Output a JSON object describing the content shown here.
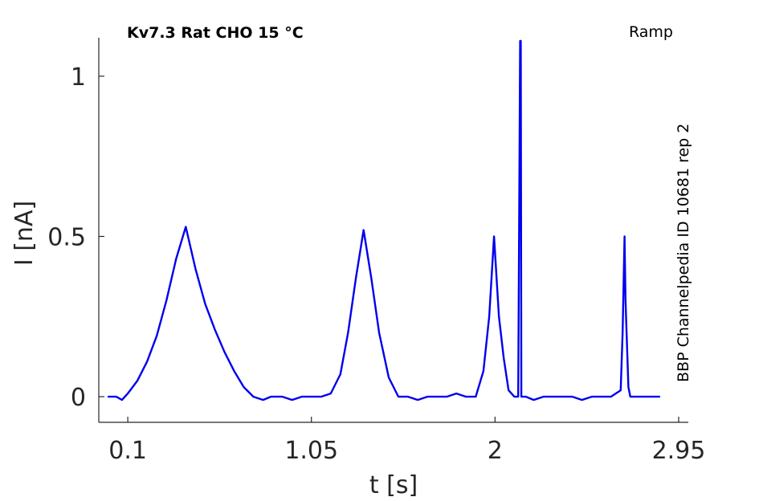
{
  "chart_data": {
    "type": "line",
    "title": "Kv7.3  Rat  CHO  15 °C",
    "subtitle": "Ramp",
    "side_note": "BBP Channelpedia ID 10681 rep 2",
    "xlabel": "t [s]",
    "ylabel": "I [nA]",
    "xlim": [
      -0.05,
      3.0
    ],
    "ylim": [
      -0.08,
      1.12
    ],
    "xticks": [
      0.1,
      1.05,
      2,
      2.95
    ],
    "xtick_labels": [
      "0.1",
      "1.05",
      "2",
      "2.95"
    ],
    "yticks": [
      0,
      0.5,
      1
    ],
    "ytick_labels": [
      "0",
      "0.5",
      "1"
    ],
    "grid": false,
    "color": "#0000ee",
    "series": [
      {
        "x": [
          0.0,
          0.04,
          0.07,
          0.1,
          0.15,
          0.2,
          0.25,
          0.3,
          0.35,
          0.4,
          0.45,
          0.5,
          0.55,
          0.6,
          0.65,
          0.7,
          0.75,
          0.8,
          0.84,
          0.88,
          0.9,
          0.95,
          1.0,
          1.05,
          1.1,
          1.15,
          1.2,
          1.24,
          1.28,
          1.32,
          1.36,
          1.4,
          1.45,
          1.5,
          1.55,
          1.6,
          1.65,
          1.7,
          1.75,
          1.8,
          1.85,
          1.9,
          1.94,
          1.97,
          1.995,
          2.02,
          2.045,
          2.07,
          2.1,
          2.12,
          2.13,
          2.133,
          2.136,
          2.14,
          2.16,
          2.2,
          2.25,
          2.3,
          2.35,
          2.4,
          2.45,
          2.5,
          2.55,
          2.6,
          2.65,
          2.66,
          2.67,
          2.675,
          2.69,
          2.7,
          2.75,
          2.8,
          2.85
        ],
        "y": [
          0.0,
          0.0,
          -0.01,
          0.01,
          0.05,
          0.11,
          0.19,
          0.3,
          0.43,
          0.53,
          0.4,
          0.29,
          0.21,
          0.14,
          0.08,
          0.03,
          0.0,
          -0.01,
          0.0,
          0.0,
          0.0,
          -0.01,
          0.0,
          0.0,
          0.0,
          0.01,
          0.07,
          0.2,
          0.37,
          0.52,
          0.37,
          0.2,
          0.06,
          0.0,
          0.0,
          -0.01,
          0.0,
          0.0,
          0.0,
          0.01,
          0.0,
          0.0,
          0.08,
          0.25,
          0.5,
          0.25,
          0.12,
          0.02,
          0.0,
          0.0,
          1.11,
          1.11,
          0.0,
          0.0,
          0.0,
          -0.01,
          0.0,
          0.0,
          0.0,
          0.0,
          -0.01,
          0.0,
          0.0,
          0.0,
          0.02,
          0.2,
          0.5,
          0.3,
          0.03,
          0.0,
          0.0,
          0.0,
          0.0
        ]
      }
    ]
  }
}
